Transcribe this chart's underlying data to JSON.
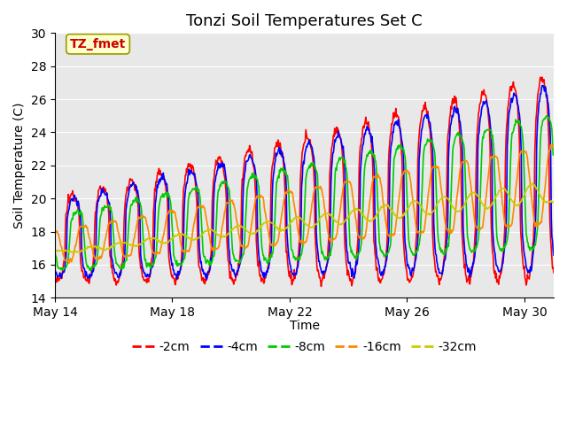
{
  "title": "Tonzi Soil Temperatures Set C",
  "xlabel": "Time",
  "ylabel": "Soil Temperature (C)",
  "ylim": [
    14,
    30
  ],
  "xlim_days": [
    0,
    17
  ],
  "xtick_positions": [
    0,
    4,
    8,
    12,
    16
  ],
  "xtick_labels": [
    "May 14",
    "May 18",
    "May 22",
    "May 26",
    "May 30"
  ],
  "series_labels": [
    "-2cm",
    "-4cm",
    "-8cm",
    "-16cm",
    "-32cm"
  ],
  "series_colors": [
    "#ff0000",
    "#0000ff",
    "#00cc00",
    "#ff8800",
    "#cccc00"
  ],
  "annotation_text": "TZ_fmet",
  "annotation_color": "#cc0000",
  "annotation_bg": "#ffffcc",
  "plot_bg": "#e8e8e8",
  "title_fontsize": 13,
  "axis_fontsize": 10,
  "legend_fontsize": 10,
  "yticks": [
    14,
    16,
    18,
    20,
    22,
    24,
    26,
    28,
    30
  ]
}
